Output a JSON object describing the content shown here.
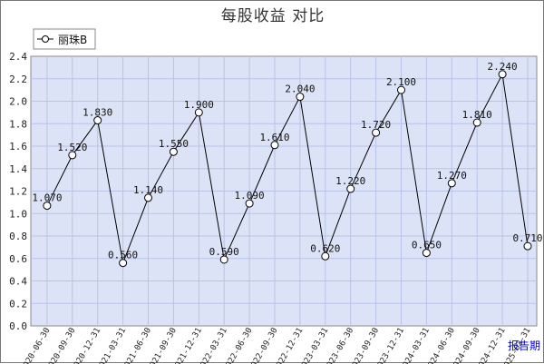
{
  "chart_data": {
    "type": "line",
    "title": "每股收益  对比",
    "xlabel": "报告期",
    "ylabel": "",
    "ylim": [
      0,
      2.4
    ],
    "ytick_step": 0.2,
    "grid": true,
    "legend_position": "top-left",
    "categories": [
      "2020-06-30",
      "2020-09-30",
      "2020-12-31",
      "2021-03-31",
      "2021-06-30",
      "2021-09-30",
      "2021-12-31",
      "2022-03-31",
      "2022-06-30",
      "2022-09-30",
      "2022-12-31",
      "2023-03-31",
      "2023-06-30",
      "2023-09-30",
      "2023-12-31",
      "2024-03-31",
      "2024-06-30",
      "2024-09-30",
      "2024-12-31",
      "2025-03-31"
    ],
    "series": [
      {
        "name": "丽珠B",
        "values": [
          1.07,
          1.52,
          1.83,
          0.56,
          1.14,
          1.55,
          1.9,
          0.59,
          1.09,
          1.61,
          2.04,
          0.62,
          1.22,
          1.72,
          2.1,
          0.65,
          1.27,
          1.81,
          2.24,
          0.71
        ],
        "labels": [
          "1.070",
          "1.520",
          "1.830",
          "0.560",
          "1.140",
          "1.550",
          "1.900",
          "0.590",
          "1.090",
          "1.610",
          "2.040",
          "0.620",
          "1.220",
          "1.720",
          "2.100",
          "0.650",
          "1.270",
          "1.810",
          "2.240",
          "0.710"
        ]
      }
    ]
  },
  "colors": {
    "plot_background": "#dde3f6",
    "grid": "#b8c2e6",
    "line": "#000000",
    "axis_title": "#0000cc"
  }
}
